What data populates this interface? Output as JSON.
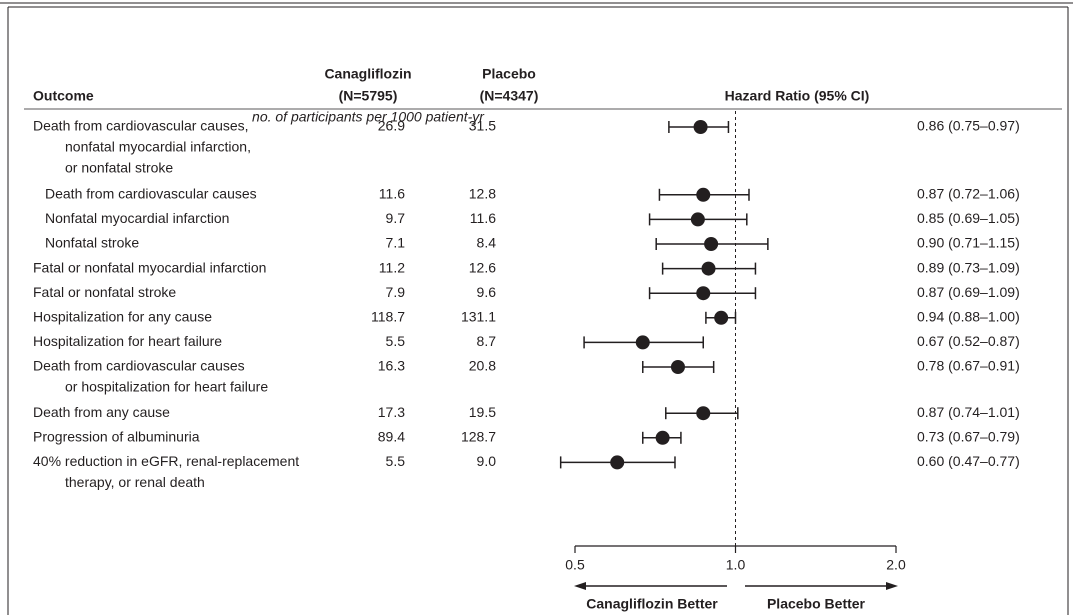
{
  "chart_data": {
    "type": "forest",
    "headers": {
      "outcome": "Outcome",
      "group1": [
        "Canagliflozin",
        "(N=5795)"
      ],
      "group2": [
        "Placebo",
        "(N=4347)"
      ],
      "effect": "Hazard Ratio (95% CI)"
    },
    "units_note": "no. of participants per 1000 patient-yr",
    "categories": [
      [
        "Death from cardiovascular causes,",
        "nonfatal myocardial infarction,",
        "or nonfatal stroke"
      ],
      [
        "Death from cardiovascular causes"
      ],
      [
        "Nonfatal myocardial infarction"
      ],
      [
        "Nonfatal stroke"
      ],
      [
        "Fatal or nonfatal myocardial infarction"
      ],
      [
        "Fatal or nonfatal stroke"
      ],
      [
        "Hospitalization for any cause"
      ],
      [
        "Hospitalization for heart failure"
      ],
      [
        "Death from cardiovascular causes",
        "or hospitalization for heart failure"
      ],
      [
        "Death from any cause"
      ],
      [
        "Progression of albuminuria"
      ],
      [
        "40% reduction in eGFR, renal-replacement",
        "therapy, or renal death"
      ]
    ],
    "level": [
      0,
      1,
      1,
      1,
      0,
      0,
      0,
      0,
      0,
      0,
      0,
      0
    ],
    "group1_rates": [
      "26.9",
      "11.6",
      "9.7",
      "7.1",
      "11.2",
      "7.9",
      "118.7",
      "5.5",
      "16.3",
      "17.3",
      "89.4",
      "5.5"
    ],
    "group2_rates": [
      "31.5",
      "12.8",
      "11.6",
      "8.4",
      "12.6",
      "9.6",
      "131.1",
      "8.7",
      "20.8",
      "19.5",
      "128.7",
      "9.0"
    ],
    "values": [
      0.86,
      0.87,
      0.85,
      0.9,
      0.89,
      0.87,
      0.94,
      0.67,
      0.78,
      0.87,
      0.73,
      0.6
    ],
    "ci_low": [
      0.75,
      0.72,
      0.69,
      0.71,
      0.73,
      0.69,
      0.88,
      0.52,
      0.67,
      0.74,
      0.67,
      0.47
    ],
    "ci_high": [
      0.97,
      1.06,
      1.05,
      1.15,
      1.09,
      1.09,
      1.0,
      0.87,
      0.91,
      1.01,
      0.79,
      0.77
    ],
    "value_labels": [
      "0.86 (0.75–0.97)",
      "0.87 (0.72–1.06)",
      "0.85 (0.69–1.05)",
      "0.90 (0.71–1.15)",
      "0.89 (0.73–1.09)",
      "0.87 (0.69–1.09)",
      "0.94 (0.88–1.00)",
      "0.67 (0.52–0.87)",
      "0.78 (0.67–0.91)",
      "0.87 (0.74–1.01)",
      "0.73 (0.67–0.79)",
      "0.60 (0.47–0.77)"
    ],
    "xlim": [
      0.5,
      2.0
    ],
    "xticks": [
      0.5,
      {
        "value": 1,
        "label": "1.0"
      },
      {
        "value": 2,
        "label": "2.0"
      }
    ],
    "xscale": "log",
    "reference": 1,
    "arrow_labels": [
      "Canagliflozin Better",
      "Placebo Better"
    ],
    "color": "#231f20"
  }
}
